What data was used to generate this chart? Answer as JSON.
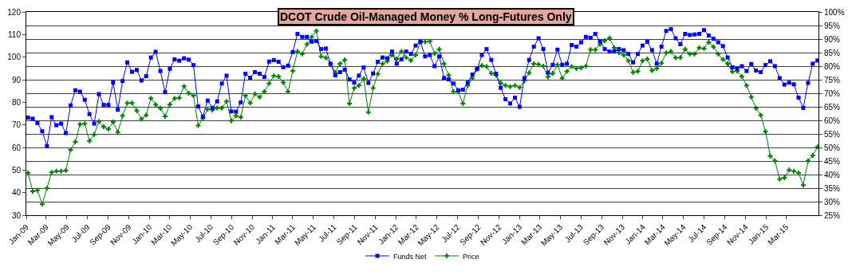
{
  "chart_data": {
    "type": "line",
    "title": "DCOT Crude Oil-Managed Money % Long-Futures Only",
    "x": [
      "2009-01-06",
      "2009-01-20",
      "2009-02-03",
      "2009-02-17",
      "2009-03-03",
      "2009-03-17",
      "2009-03-31",
      "2009-04-14",
      "2009-04-28",
      "2009-05-12",
      "2009-05-26",
      "2009-06-09",
      "2009-06-23",
      "2009-07-07",
      "2009-07-21",
      "2009-08-04",
      "2009-08-18",
      "2009-09-01",
      "2009-09-15",
      "2009-09-29",
      "2009-10-13",
      "2009-10-27",
      "2009-11-10",
      "2009-11-24",
      "2009-12-08",
      "2009-12-22",
      "2010-01-05",
      "2010-01-19",
      "2010-02-02",
      "2010-02-16",
      "2010-03-02",
      "2010-03-16",
      "2010-03-30",
      "2010-04-13",
      "2010-04-27",
      "2010-05-11",
      "2010-05-25",
      "2010-06-08",
      "2010-06-22",
      "2010-07-06",
      "2010-07-20",
      "2010-08-03",
      "2010-08-17",
      "2010-08-31",
      "2010-09-14",
      "2010-09-28",
      "2010-10-12",
      "2010-10-26",
      "2010-11-09",
      "2010-11-23",
      "2010-12-07",
      "2010-12-21",
      "2011-01-04",
      "2011-01-18",
      "2011-02-01",
      "2011-02-15",
      "2011-03-01",
      "2011-03-15",
      "2011-03-29",
      "2011-04-12",
      "2011-04-26",
      "2011-05-10",
      "2011-05-24",
      "2011-06-07",
      "2011-06-21",
      "2011-07-05",
      "2011-07-19",
      "2011-08-02",
      "2011-08-16",
      "2011-08-30",
      "2011-09-13",
      "2011-09-27",
      "2011-10-11",
      "2011-10-25",
      "2011-11-08",
      "2011-11-22",
      "2011-12-06",
      "2011-12-20",
      "2012-01-03",
      "2012-01-17",
      "2012-01-31",
      "2012-02-14",
      "2012-02-28",
      "2012-03-13",
      "2012-03-27",
      "2012-04-10",
      "2012-04-24",
      "2012-05-08",
      "2012-05-22",
      "2012-06-05",
      "2012-06-19",
      "2012-07-03",
      "2012-07-17",
      "2012-07-31",
      "2012-08-14",
      "2012-08-28",
      "2012-09-11",
      "2012-09-25",
      "2012-10-09",
      "2012-10-23",
      "2012-11-06",
      "2012-11-20",
      "2012-12-04",
      "2012-12-18",
      "2013-01-01",
      "2013-01-15",
      "2013-01-29",
      "2013-02-12",
      "2013-02-26",
      "2013-03-12",
      "2013-03-26",
      "2013-04-09",
      "2013-04-23",
      "2013-05-07",
      "2013-05-21",
      "2013-06-04",
      "2013-06-18",
      "2013-07-02",
      "2013-07-16",
      "2013-07-30",
      "2013-08-13",
      "2013-08-27",
      "2013-09-10",
      "2013-09-24",
      "2013-10-08",
      "2013-10-22",
      "2013-11-05",
      "2013-11-19",
      "2013-12-03",
      "2013-12-17",
      "2013-12-31",
      "2014-01-14",
      "2014-01-28",
      "2014-02-11",
      "2014-02-25",
      "2014-03-11",
      "2014-03-25",
      "2014-04-08",
      "2014-04-22",
      "2014-05-06",
      "2014-05-20",
      "2014-06-03",
      "2014-06-17",
      "2014-07-01",
      "2014-07-15",
      "2014-07-29",
      "2014-08-12",
      "2014-08-26",
      "2014-09-09",
      "2014-09-23",
      "2014-10-07",
      "2014-10-21",
      "2014-11-04",
      "2014-11-18",
      "2014-12-02",
      "2014-12-16",
      "2014-12-30",
      "2015-01-13",
      "2015-01-27",
      "2015-02-10",
      "2015-02-24",
      "2015-03-10",
      "2015-03-24",
      "2015-04-07",
      "2015-04-21",
      "2015-05-05",
      "2015-05-19",
      "2015-06-02"
    ],
    "series": [
      {
        "name": "Funds Net",
        "color": "#0000ff",
        "axis": "y2",
        "marker": "square",
        "values": [
          61.0,
          60.6,
          59.0,
          56.0,
          50.5,
          61.2,
          58.2,
          58.8,
          55.3,
          65.5,
          71.1,
          70.6,
          67.6,
          62.3,
          58.8,
          69.7,
          65.7,
          65.7,
          74.0,
          63.9,
          74.5,
          81.4,
          77.9,
          78.6,
          74.7,
          76.3,
          83.2,
          85.3,
          78.2,
          70.4,
          79.0,
          82.5,
          82.0,
          82.9,
          82.4,
          80.4,
          65.1,
          61.4,
          67.3,
          64.6,
          67.0,
          73.6,
          76.5,
          63.3,
          63.2,
          66.6,
          77.2,
          75.7,
          77.8,
          77.2,
          76.0,
          81.7,
          82.2,
          81.6,
          79.6,
          80.2,
          85.2,
          91.9,
          90.8,
          90.8,
          89.0,
          89.3,
          86.3,
          86.5,
          80.8,
          76.6,
          77.8,
          78.7,
          75.1,
          73.9,
          76.5,
          79.5,
          73.8,
          77.3,
          81.6,
          83.2,
          82.9,
          85.4,
          80.9,
          82.5,
          85.4,
          84.5,
          87.6,
          89.0,
          83.6,
          84.1,
          80.0,
          83.6,
          75.6,
          75.1,
          73.6,
          71.1,
          71.3,
          73.9,
          76.9,
          79.0,
          84.1,
          86.3,
          82.3,
          77.2,
          72.0,
          67.8,
          66.2,
          68.4,
          65.0,
          75.6,
          82.3,
          87.2,
          90.3,
          86.3,
          77.6,
          80.5,
          86.1,
          80.5,
          80.9,
          87.8,
          87.2,
          88.8,
          90.8,
          90.5,
          91.9,
          89.2,
          86.3,
          85.4,
          85.4,
          86.3,
          85.9,
          84.5,
          81.4,
          84.5,
          87.6,
          89.0,
          85.9,
          80.9,
          87.2,
          93.0,
          93.7,
          90.3,
          88.1,
          91.9,
          91.5,
          91.7,
          91.9,
          93.3,
          91.3,
          90.1,
          88.8,
          87.4,
          83.2,
          79.6,
          79.1,
          80.0,
          78.2,
          80.8,
          78.4,
          77.8,
          80.4,
          81.8,
          80.0,
          75.6,
          73.2,
          73.9,
          73.3,
          68.4,
          64.6,
          73.8,
          80.9,
          82.1
        ]
      },
      {
        "name": "Price",
        "color": "#008000",
        "marker": "cross",
        "values": [
          48.7,
          40.6,
          41.0,
          34.9,
          42.0,
          49.0,
          49.5,
          49.5,
          49.8,
          58.9,
          62.5,
          70.2,
          70.5,
          62.9,
          65.7,
          71.5,
          69.2,
          68.1,
          71.3,
          66.8,
          74.0,
          79.7,
          79.7,
          76.3,
          72.6,
          74.3,
          81.8,
          79.0,
          77.4,
          73.8,
          79.1,
          81.7,
          82.0,
          87.1,
          84.0,
          82.9,
          69.7,
          72.9,
          76.9,
          76.5,
          77.5,
          77.5,
          80.4,
          71.8,
          74.0,
          73.4,
          82.9,
          79.7,
          83.7,
          82.3,
          84.7,
          88.3,
          91.7,
          91.4,
          88.8,
          84.7,
          93.9,
          102.5,
          101.4,
          105.7,
          108.9,
          111.6,
          100.3,
          99.7,
          97.1,
          93.3,
          97.1,
          98.7,
          79.4,
          86.3,
          87.4,
          90.4,
          75.6,
          86.3,
          92.6,
          97.1,
          98.2,
          100.9,
          99.2,
          102.5,
          99.8,
          98.6,
          100.9,
          106.8,
          106.8,
          107.0,
          101.6,
          103.5,
          97.1,
          91.9,
          84.7,
          84.7,
          79.4,
          87.4,
          90.6,
          94.7,
          96.3,
          95.8,
          92.8,
          91.9,
          88.5,
          87.4,
          86.9,
          87.4,
          86.6,
          89.6,
          93.0,
          97.1,
          96.8,
          96.0,
          91.2,
          92.8,
          96.6,
          90.6,
          93.7,
          95.8,
          94.9,
          95.2,
          96.0,
          103.3,
          103.2,
          105.7,
          107.3,
          108.4,
          104.1,
          101.9,
          100.9,
          98.4,
          93.3,
          93.7,
          98.4,
          99.2,
          94.1,
          94.9,
          97.3,
          101.9,
          102.5,
          99.7,
          99.8,
          103.5,
          101.4,
          101.4,
          104.1,
          103.8,
          106.6,
          104.6,
          101.4,
          99.0,
          97.1,
          93.5,
          93.9,
          91.4,
          87.4,
          82.3,
          77.4,
          74.3,
          67.0,
          56.2,
          54.1,
          46.0,
          46.6,
          50.0,
          49.5,
          48.7,
          43.3,
          54.1,
          56.5,
          60.3
        ]
      }
    ],
    "xlim": [
      "2009-01-01",
      "2015-06-05"
    ],
    "xticks": [
      {
        "value": "2009-01-01",
        "label": "Jan-09"
      },
      {
        "value": "2009-03-01",
        "label": "Mar-09"
      },
      {
        "value": "2009-05-01",
        "label": "May-09"
      },
      {
        "value": "2009-07-01",
        "label": "Jul-09"
      },
      {
        "value": "2009-09-01",
        "label": "Sep-09"
      },
      {
        "value": "2009-11-01",
        "label": "Nov-09"
      },
      {
        "value": "2010-01-01",
        "label": "Jan-10"
      },
      {
        "value": "2010-03-01",
        "label": "Mar-10"
      },
      {
        "value": "2010-05-01",
        "label": "May-10"
      },
      {
        "value": "2010-07-01",
        "label": "Jul-10"
      },
      {
        "value": "2010-09-01",
        "label": "Sep-10"
      },
      {
        "value": "2010-11-01",
        "label": "Nov-10"
      },
      {
        "value": "2011-01-01",
        "label": "Jan-11"
      },
      {
        "value": "2011-03-01",
        "label": "Mar-11"
      },
      {
        "value": "2011-05-01",
        "label": "May-11"
      },
      {
        "value": "2011-07-01",
        "label": "Jul-11"
      },
      {
        "value": "2011-09-01",
        "label": "Sep-11"
      },
      {
        "value": "2011-11-01",
        "label": "Nov-11"
      },
      {
        "value": "2012-01-01",
        "label": "Jan-12"
      },
      {
        "value": "2012-03-01",
        "label": "Mar-12"
      },
      {
        "value": "2012-05-01",
        "label": "May-12"
      },
      {
        "value": "2012-07-01",
        "label": "Jul-12"
      },
      {
        "value": "2012-09-01",
        "label": "Sep-12"
      },
      {
        "value": "2012-11-01",
        "label": "Nov-12"
      },
      {
        "value": "2013-01-01",
        "label": "Jan-13"
      },
      {
        "value": "2013-03-01",
        "label": "Mar-13"
      },
      {
        "value": "2013-05-01",
        "label": "May-13"
      },
      {
        "value": "2013-07-01",
        "label": "Jul-13"
      },
      {
        "value": "2013-09-01",
        "label": "Sep-13"
      },
      {
        "value": "2013-11-01",
        "label": "Nov-13"
      },
      {
        "value": "2014-01-01",
        "label": "Jan-14"
      },
      {
        "value": "2014-03-01",
        "label": "Mar-14"
      },
      {
        "value": "2014-05-01",
        "label": "May-14"
      },
      {
        "value": "2014-07-01",
        "label": "Jul-14"
      },
      {
        "value": "2014-09-01",
        "label": "Sep-14"
      },
      {
        "value": "2014-11-01",
        "label": "Nov-14"
      },
      {
        "value": "2015-01-01",
        "label": "Jan-15"
      },
      {
        "value": "2015-03-01",
        "label": "Mar-15"
      }
    ],
    "ylim": [
      30,
      120
    ],
    "yticks": [
      30,
      40,
      50,
      60,
      70,
      80,
      90,
      100,
      110,
      120
    ],
    "y2lim": [
      25,
      100
    ],
    "y2ticks": [
      {
        "value": 25,
        "label": "25%"
      },
      {
        "value": 30,
        "label": "30%"
      },
      {
        "value": 35,
        "label": "35%"
      },
      {
        "value": 40,
        "label": "40%"
      },
      {
        "value": 45,
        "label": "45%"
      },
      {
        "value": 50,
        "label": "50%"
      },
      {
        "value": 55,
        "label": "55%"
      },
      {
        "value": 60,
        "label": "60%"
      },
      {
        "value": 65,
        "label": "65%"
      },
      {
        "value": 70,
        "label": "70%"
      },
      {
        "value": 75,
        "label": "75%"
      },
      {
        "value": 80,
        "label": "80%"
      },
      {
        "value": 85,
        "label": "85%"
      },
      {
        "value": 90,
        "label": "90%"
      },
      {
        "value": 95,
        "label": "95%"
      },
      {
        "value": 100,
        "label": "100%"
      }
    ],
    "grid": "y",
    "legend": "bottom"
  }
}
